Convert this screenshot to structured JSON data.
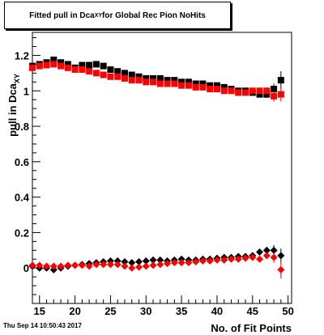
{
  "title": {
    "prefix": "Fitted pull in Dca",
    "subscript": "XY",
    "suffix": " for Global Rec Pion NoHits"
  },
  "footer": "Thu Sep 14 10:50:43 2017",
  "colors": {
    "black_series": "#000000",
    "red_series": "#ff0000"
  },
  "chart_data": {
    "type": "scatter",
    "xlabel": "No. of Fit Points",
    "ylabel_main": "pull in Dca",
    "ylabel_sub": "XY",
    "xlim": [
      14,
      50.5
    ],
    "ylim": [
      -0.2,
      1.33
    ],
    "x_ticks": [
      15,
      20,
      25,
      30,
      35,
      40,
      45,
      50
    ],
    "y_ticks": [
      0,
      0.2,
      0.4,
      0.6,
      0.8,
      1.0,
      1.2
    ],
    "y_tick_labels": [
      "0",
      "0.2",
      "0.4",
      "0.6",
      "0.8",
      "1",
      "1.2"
    ],
    "x_tick_labels": [
      "15",
      "20",
      "25",
      "30",
      "35",
      "40",
      "45",
      "50"
    ],
    "series": [
      {
        "marker": "square",
        "color": "#000000",
        "x": [
          14,
          15,
          16,
          17,
          18,
          19,
          20,
          21,
          22,
          23,
          24,
          25,
          26,
          27,
          28,
          29,
          30,
          31,
          32,
          33,
          34,
          35,
          36,
          37,
          38,
          39,
          40,
          41,
          42,
          43,
          44,
          45,
          46,
          47,
          48,
          49
        ],
        "y": [
          1.14,
          1.15,
          1.16,
          1.175,
          1.16,
          1.15,
          1.13,
          1.145,
          1.145,
          1.15,
          1.14,
          1.12,
          1.11,
          1.1,
          1.09,
          1.08,
          1.07,
          1.07,
          1.07,
          1.06,
          1.06,
          1.05,
          1.05,
          1.04,
          1.04,
          1.03,
          1.03,
          1.02,
          1.01,
          1.0,
          1.0,
          0.99,
          0.98,
          0.98,
          1.01,
          1.06
        ],
        "err": [
          0.01,
          0.01,
          0.01,
          0.01,
          0.01,
          0.01,
          0.01,
          0.01,
          0.01,
          0.01,
          0.01,
          0.01,
          0.01,
          0.01,
          0.01,
          0.01,
          0.01,
          0.01,
          0.01,
          0.01,
          0.01,
          0.01,
          0.01,
          0.01,
          0.01,
          0.01,
          0.01,
          0.01,
          0.01,
          0.01,
          0.01,
          0.01,
          0.015,
          0.02,
          0.03,
          0.05
        ]
      },
      {
        "marker": "square",
        "color": "#ff0000",
        "x": [
          14,
          15,
          16,
          17,
          18,
          19,
          20,
          21,
          22,
          23,
          24,
          25,
          26,
          27,
          28,
          29,
          30,
          31,
          32,
          33,
          34,
          35,
          36,
          37,
          38,
          39,
          40,
          41,
          42,
          43,
          44,
          45,
          46,
          47,
          48,
          49
        ],
        "y": [
          1.13,
          1.14,
          1.145,
          1.15,
          1.14,
          1.13,
          1.12,
          1.12,
          1.11,
          1.1,
          1.09,
          1.08,
          1.08,
          1.07,
          1.06,
          1.06,
          1.05,
          1.05,
          1.04,
          1.04,
          1.04,
          1.03,
          1.03,
          1.02,
          1.02,
          1.01,
          1.01,
          1.0,
          1.0,
          0.99,
          0.99,
          1.0,
          1.0,
          1.0,
          0.97,
          0.98
        ],
        "err": [
          0.01,
          0.01,
          0.01,
          0.01,
          0.01,
          0.01,
          0.01,
          0.01,
          0.01,
          0.01,
          0.01,
          0.01,
          0.01,
          0.01,
          0.01,
          0.01,
          0.01,
          0.01,
          0.01,
          0.01,
          0.01,
          0.01,
          0.01,
          0.01,
          0.01,
          0.01,
          0.01,
          0.01,
          0.01,
          0.01,
          0.01,
          0.01,
          0.015,
          0.02,
          0.03,
          0.04
        ]
      },
      {
        "marker": "diamond",
        "color": "#000000",
        "x": [
          14,
          15,
          16,
          17,
          18,
          19,
          20,
          21,
          22,
          23,
          24,
          25,
          26,
          27,
          28,
          29,
          30,
          31,
          32,
          33,
          34,
          35,
          36,
          37,
          38,
          39,
          40,
          41,
          42,
          43,
          44,
          45,
          46,
          47,
          48,
          49
        ],
        "y": [
          0.01,
          0.0,
          0.0,
          -0.01,
          0.0,
          0.01,
          0.015,
          0.02,
          0.025,
          0.03,
          0.035,
          0.04,
          0.04,
          0.035,
          0.03,
          0.035,
          0.04,
          0.045,
          0.045,
          0.04,
          0.045,
          0.05,
          0.045,
          0.045,
          0.05,
          0.05,
          0.055,
          0.06,
          0.06,
          0.065,
          0.065,
          0.07,
          0.09,
          0.1,
          0.1,
          0.07
        ],
        "err": [
          0.01,
          0.01,
          0.01,
          0.01,
          0.01,
          0.01,
          0.01,
          0.01,
          0.01,
          0.01,
          0.01,
          0.01,
          0.01,
          0.01,
          0.01,
          0.01,
          0.01,
          0.01,
          0.01,
          0.01,
          0.01,
          0.01,
          0.01,
          0.01,
          0.01,
          0.01,
          0.01,
          0.01,
          0.01,
          0.01,
          0.01,
          0.01,
          0.015,
          0.02,
          0.03,
          0.04
        ]
      },
      {
        "marker": "diamond",
        "color": "#ff0000",
        "x": [
          14,
          15,
          16,
          17,
          18,
          19,
          20,
          21,
          22,
          23,
          24,
          25,
          26,
          27,
          28,
          29,
          30,
          31,
          32,
          33,
          34,
          35,
          36,
          37,
          38,
          39,
          40,
          41,
          42,
          43,
          44,
          45,
          46,
          47,
          48,
          49
        ],
        "y": [
          0.015,
          0.015,
          0.01,
          0.01,
          0.01,
          0.015,
          0.015,
          0.015,
          0.01,
          0.02,
          0.02,
          0.02,
          0.02,
          0.01,
          0.0,
          0.005,
          0.01,
          0.015,
          0.02,
          0.025,
          0.03,
          0.03,
          0.03,
          0.035,
          0.04,
          0.04,
          0.045,
          0.045,
          0.05,
          0.05,
          0.055,
          0.06,
          0.05,
          0.07,
          0.06,
          -0.01
        ],
        "err": [
          0.01,
          0.01,
          0.01,
          0.01,
          0.01,
          0.01,
          0.01,
          0.01,
          0.01,
          0.01,
          0.01,
          0.01,
          0.01,
          0.01,
          0.01,
          0.01,
          0.01,
          0.01,
          0.01,
          0.01,
          0.01,
          0.01,
          0.01,
          0.01,
          0.01,
          0.01,
          0.01,
          0.01,
          0.01,
          0.01,
          0.01,
          0.01,
          0.015,
          0.02,
          0.03,
          0.05
        ]
      }
    ]
  }
}
